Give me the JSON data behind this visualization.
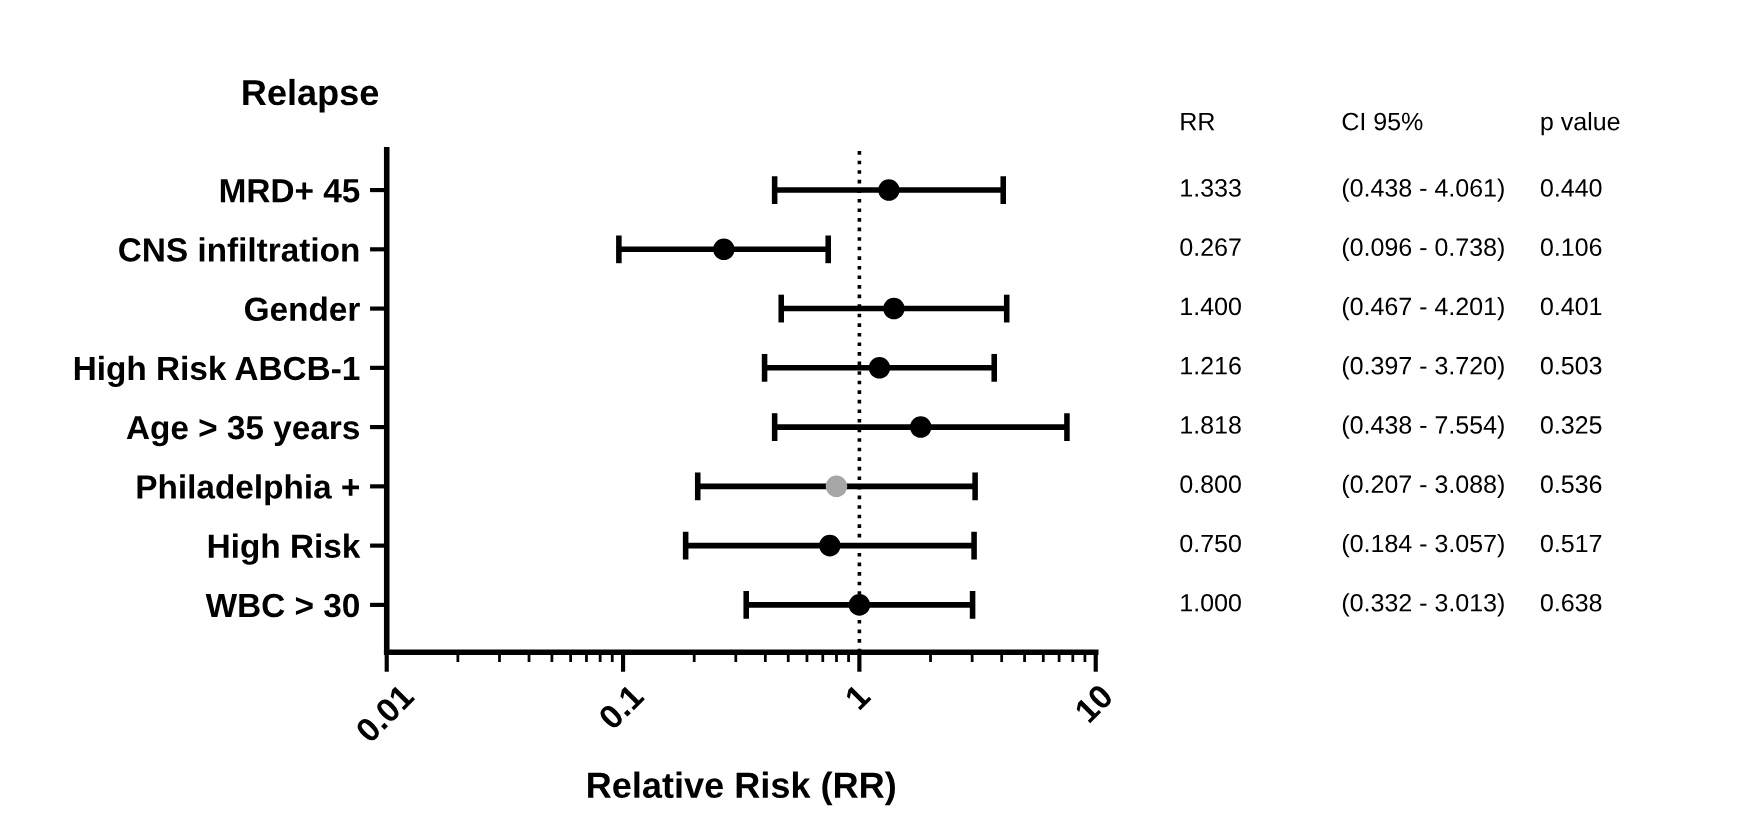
{
  "chart_data": {
    "type": "scatter",
    "orientation": "horizontal",
    "title": "Relapse",
    "xlabel": "Relative Risk (RR)",
    "categories": [
      "MRD+ 45",
      "CNS infiltration",
      "Gender",
      "High Risk ABCB-1",
      "Age > 35 years",
      "Philadelphia +",
      "High Risk",
      "WBC > 30"
    ],
    "values": [
      1.333,
      0.267,
      1.4,
      1.216,
      1.818,
      0.8,
      0.75,
      1.0
    ],
    "errors": [
      [
        0.438,
        4.061
      ],
      [
        0.096,
        0.738
      ],
      [
        0.467,
        4.201
      ],
      [
        0.397,
        3.72
      ],
      [
        0.438,
        7.554
      ],
      [
        0.207,
        3.088
      ],
      [
        0.184,
        3.057
      ],
      [
        0.332,
        3.013
      ]
    ],
    "colors": [
      "#000000",
      "#000000",
      "#000000",
      "#000000",
      "#000000",
      "#a6a6a6",
      "#000000",
      "#000000"
    ],
    "value_labels": [
      "1.333",
      "0.267",
      "1.400",
      "1.216",
      "1.818",
      "0.800",
      "0.750",
      "1.000"
    ],
    "annotations": [
      "RR",
      "CI 95%",
      "p value",
      "(0.438 - 4.061)",
      "0.440",
      "(0.096 - 0.738)",
      "0.106",
      "(0.467 - 4.201)",
      "0.401",
      "(0.397 - 3.720)",
      "0.503",
      "(0.438 - 7.554)",
      "0.325",
      "(0.207 - 3.088)",
      "0.536",
      "(0.184 - 3.057)",
      "0.517",
      "(0.332 - 3.013)",
      "0.638"
    ],
    "log": "x",
    "xlim": [
      0.01,
      10
    ],
    "xticks": [
      0.01,
      0.1,
      1,
      10
    ],
    "ref_lines": [
      {
        "axis": "x",
        "value": 1,
        "line_style": "dotted",
        "color": "#000000"
      }
    ],
    "marker": "circle",
    "grid": false,
    "legend": false
  }
}
